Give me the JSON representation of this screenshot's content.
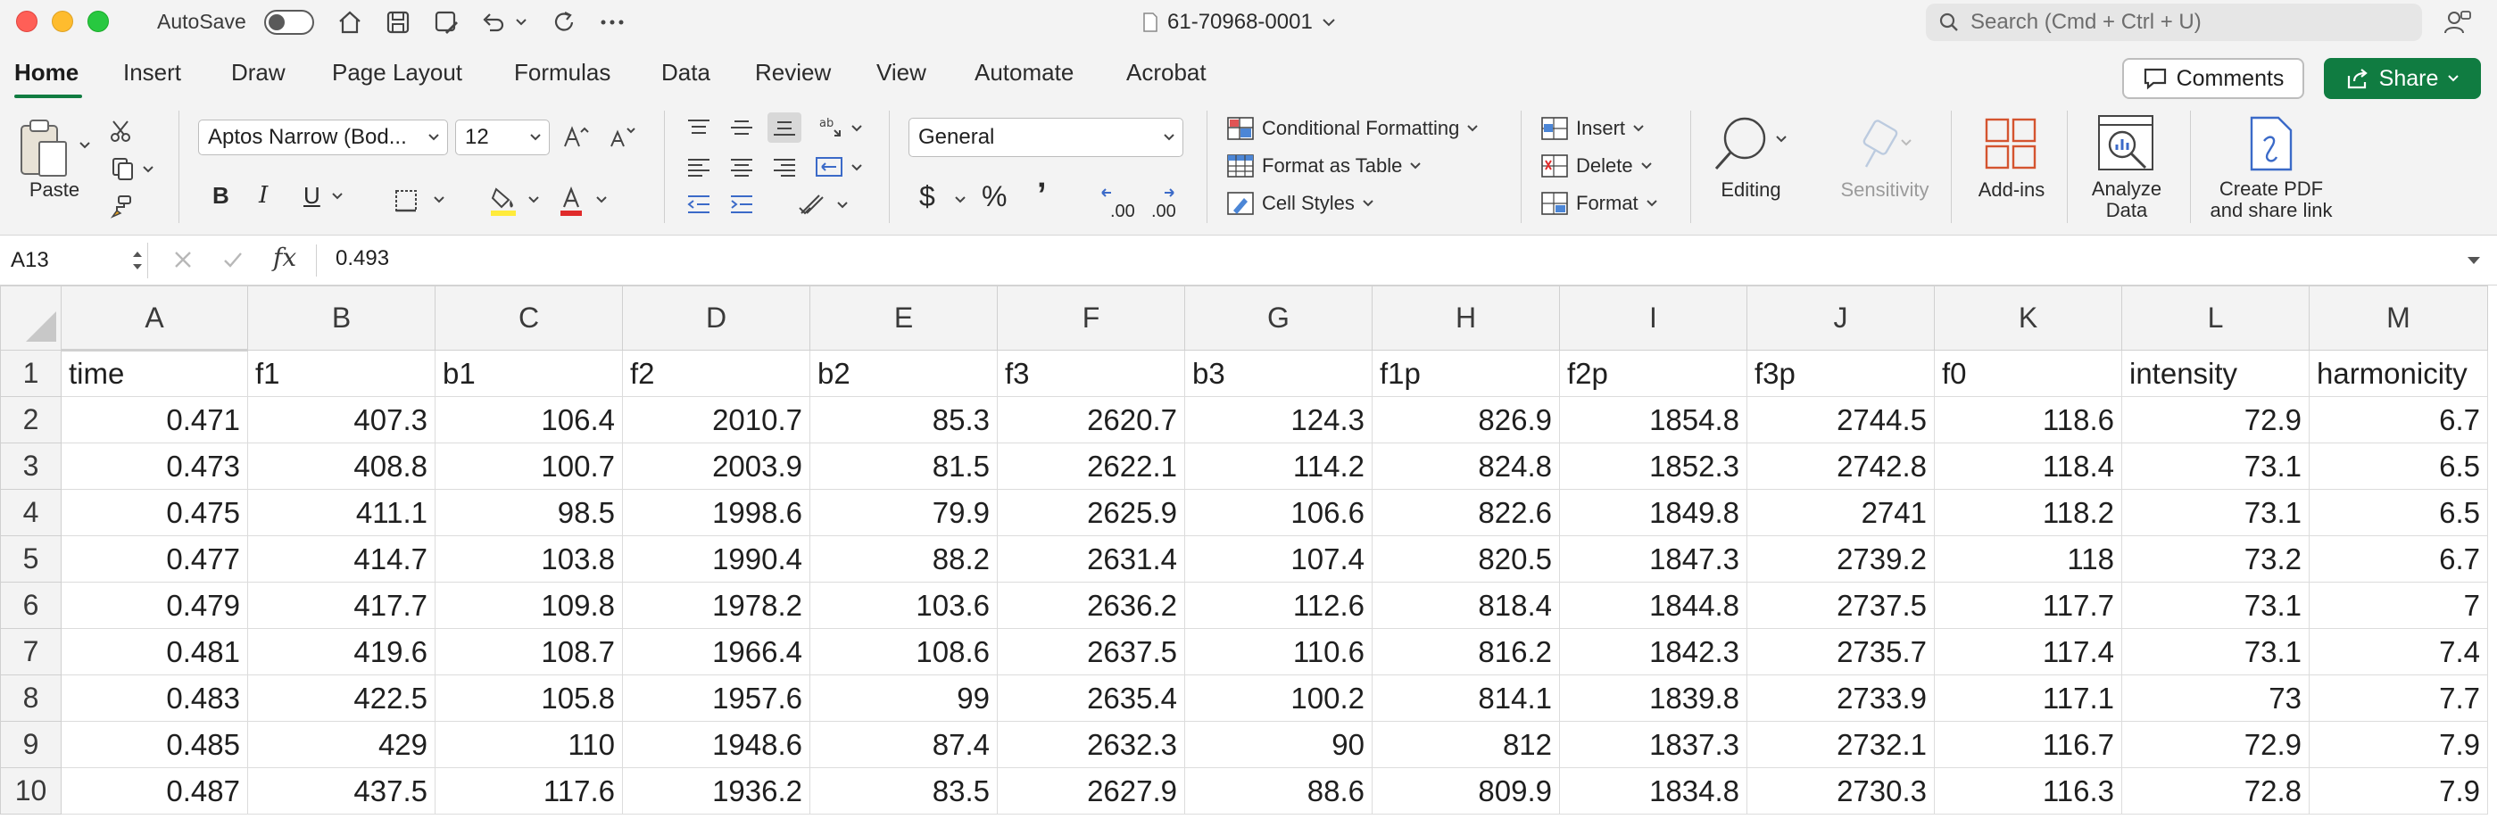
{
  "window": {
    "autosave_label": "AutoSave",
    "autosave_on": false,
    "document_title": "61-70968-0001",
    "search_placeholder": "Search (Cmd + Ctrl + U)"
  },
  "tabs": [
    "Home",
    "Insert",
    "Draw",
    "Page Layout",
    "Formulas",
    "Data",
    "Review",
    "View",
    "Automate",
    "Acrobat"
  ],
  "active_tab": "Home",
  "header_buttons": {
    "comments": "Comments",
    "share": "Share"
  },
  "ribbon": {
    "paste_label": "Paste",
    "font_name": "Aptos Narrow (Bod...",
    "font_size": "12",
    "bold": "B",
    "italic": "I",
    "underline": "U",
    "number_format": "General",
    "currency_symbol": "$",
    "percent_symbol": "%",
    "comma_symbol": "’",
    "increase_decimal": ".00",
    "decrease_decimal": ".00",
    "conditional_formatting": "Conditional Formatting",
    "format_as_table": "Format as Table",
    "cell_styles": "Cell Styles",
    "insert": "Insert",
    "delete": "Delete",
    "format": "Format",
    "editing": "Editing",
    "sensitivity": "Sensitivity",
    "add_ins": "Add-ins",
    "analyze_data_1": "Analyze",
    "analyze_data_2": "Data",
    "create_pdf_1": "Create PDF",
    "create_pdf_2": "and share link"
  },
  "formula_bar": {
    "name_box": "A13",
    "fx": "fx",
    "value": "0.493"
  },
  "colors": {
    "accent": "#107c41",
    "share_bg": "#107c41",
    "chrome": "#f3f3f3"
  },
  "sheet": {
    "active_column": "A",
    "columns": [
      "A",
      "B",
      "C",
      "D",
      "E",
      "F",
      "G",
      "H",
      "I",
      "J",
      "K",
      "L",
      "M"
    ],
    "rows": [
      [
        "1",
        "time",
        "f1",
        "b1",
        "f2",
        "b2",
        "f3",
        "b3",
        "f1p",
        "f2p",
        "f3p",
        "f0",
        "intensity",
        "harmonicity"
      ],
      [
        "2",
        "0.471",
        "407.3",
        "106.4",
        "2010.7",
        "85.3",
        "2620.7",
        "124.3",
        "826.9",
        "1854.8",
        "2744.5",
        "118.6",
        "72.9",
        "6.7"
      ],
      [
        "3",
        "0.473",
        "408.8",
        "100.7",
        "2003.9",
        "81.5",
        "2622.1",
        "114.2",
        "824.8",
        "1852.3",
        "2742.8",
        "118.4",
        "73.1",
        "6.5"
      ],
      [
        "4",
        "0.475",
        "411.1",
        "98.5",
        "1998.6",
        "79.9",
        "2625.9",
        "106.6",
        "822.6",
        "1849.8",
        "2741",
        "118.2",
        "73.1",
        "6.5"
      ],
      [
        "5",
        "0.477",
        "414.7",
        "103.8",
        "1990.4",
        "88.2",
        "2631.4",
        "107.4",
        "820.5",
        "1847.3",
        "2739.2",
        "118",
        "73.2",
        "6.7"
      ],
      [
        "6",
        "0.479",
        "417.7",
        "109.8",
        "1978.2",
        "103.6",
        "2636.2",
        "112.6",
        "818.4",
        "1844.8",
        "2737.5",
        "117.7",
        "73.1",
        "7"
      ],
      [
        "7",
        "0.481",
        "419.6",
        "108.7",
        "1966.4",
        "108.6",
        "2637.5",
        "110.6",
        "816.2",
        "1842.3",
        "2735.7",
        "117.4",
        "73.1",
        "7.4"
      ],
      [
        "8",
        "0.483",
        "422.5",
        "105.8",
        "1957.6",
        "99",
        "2635.4",
        "100.2",
        "814.1",
        "1839.8",
        "2733.9",
        "117.1",
        "73",
        "7.7"
      ],
      [
        "9",
        "0.485",
        "429",
        "110",
        "1948.6",
        "87.4",
        "2632.3",
        "90",
        "812",
        "1837.3",
        "2732.1",
        "116.7",
        "72.9",
        "7.9"
      ],
      [
        "10",
        "0.487",
        "437.5",
        "117.6",
        "1936.2",
        "83.5",
        "2627.9",
        "88.6",
        "809.9",
        "1834.8",
        "2730.3",
        "116.3",
        "72.8",
        "7.9"
      ]
    ]
  }
}
